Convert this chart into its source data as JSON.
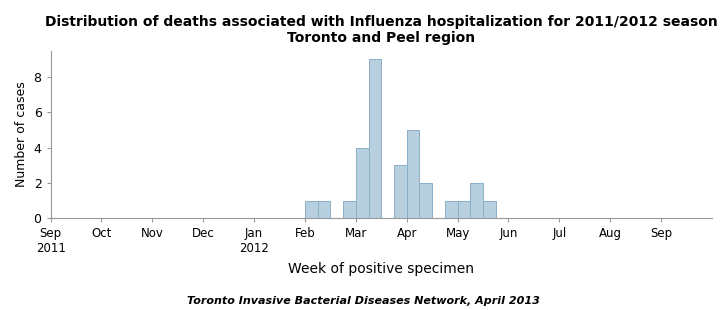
{
  "title_line1": "Distribution of deaths associated with Influenza hospitalization for 2011/2012 season",
  "title_line2": "Toronto and Peel region",
  "xlabel": "Week of positive specimen",
  "ylabel": "Number of cases",
  "footnote": "Toronto Invasive Bacterial Diseases Network, April 2013",
  "bar_color": "#b8cfe0",
  "bar_edge_color": "#8aafc8",
  "months": [
    "Sep\n2011",
    "Oct",
    "Nov",
    "Dec",
    "Jan\n2012",
    "Feb",
    "Mar",
    "Apr",
    "May",
    "Jun",
    "Jul",
    "Aug",
    "Sep"
  ],
  "month_positions": [
    0,
    1,
    2,
    3,
    4,
    5,
    6,
    7,
    8,
    9,
    10,
    11,
    12
  ],
  "bar_heights": [
    1,
    1,
    1,
    4,
    9,
    3,
    5,
    2,
    1,
    1,
    2,
    1
  ],
  "bar_left_edges": [
    4.75,
    5.25,
    5.75,
    6.25,
    6.75,
    7.0,
    7.5,
    7.75,
    8.0,
    8.5,
    8.75,
    9.25
  ],
  "ylim": [
    0,
    9.5
  ],
  "yticks": [
    0,
    2,
    4,
    6,
    8
  ],
  "bar_width": 0.5
}
